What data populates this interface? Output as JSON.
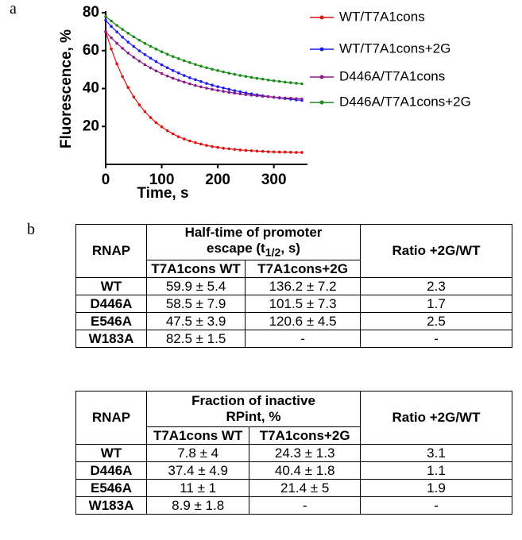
{
  "panels": {
    "a": "a",
    "b": "b"
  },
  "chart_data": {
    "type": "scatter",
    "xlabel": "Time, s",
    "ylabel": "Fluorescence, %",
    "xlim": [
      0,
      360
    ],
    "ylim": [
      0,
      80
    ],
    "xticks": [
      0,
      100,
      200,
      300
    ],
    "yticks": [
      20,
      40,
      60,
      80
    ],
    "x": [
      0,
      10,
      20,
      30,
      40,
      50,
      60,
      70,
      80,
      90,
      100,
      110,
      120,
      130,
      140,
      150,
      160,
      170,
      180,
      190,
      200,
      210,
      220,
      230,
      240,
      250,
      260,
      270,
      280,
      290,
      300,
      310,
      320,
      330,
      340,
      350
    ],
    "series": [
      {
        "name": "WT/T7A1cons",
        "color": "#e01010",
        "values": [
          70,
          60.9,
          53.0,
          46.3,
          40.6,
          35.6,
          31.4,
          27.8,
          24.7,
          22.0,
          19.8,
          17.8,
          16.1,
          14.6,
          13.4,
          12.4,
          11.5,
          10.7,
          10.0,
          9.4,
          9.0,
          8.5,
          8.2,
          7.9,
          7.6,
          7.4,
          7.2,
          7.0,
          6.9,
          6.7,
          6.6,
          6.5,
          6.5,
          6.4,
          6.3,
          6.3
        ]
      },
      {
        "name": "WT/T7A1cons+2G",
        "color": "#1a1aee",
        "values": [
          76,
          72.8,
          69.9,
          67.1,
          64.5,
          62.2,
          59.9,
          57.9,
          56.0,
          54.2,
          52.5,
          51.0,
          49.5,
          48.2,
          46.9,
          45.7,
          44.7,
          43.7,
          42.7,
          41.8,
          41.0,
          40.3,
          39.6,
          38.9,
          38.3,
          37.7,
          37.2,
          36.7,
          36.2,
          35.8,
          35.4,
          35.0,
          34.7,
          34.4,
          34.0,
          33.8
        ]
      },
      {
        "name": "D446A/T7A1cons",
        "color": "#8b1a8b",
        "values": [
          70,
          66.8,
          63.9,
          61.2,
          58.7,
          56.5,
          54.5,
          52.6,
          50.9,
          49.3,
          47.9,
          46.6,
          45.4,
          44.4,
          43.4,
          42.5,
          41.6,
          40.9,
          40.2,
          39.6,
          39.0,
          38.5,
          38.0,
          37.6,
          37.2,
          36.8,
          36.5,
          36.2,
          35.9,
          35.7,
          35.4,
          35.2,
          35.0,
          34.9,
          34.7,
          34.5
        ]
      },
      {
        "name": "D446A/T7A1cons+2G",
        "color": "#1a8c1a",
        "values": [
          78,
          75.6,
          73.3,
          71.2,
          69.2,
          67.3,
          65.5,
          63.8,
          62.3,
          60.8,
          59.4,
          58.1,
          56.9,
          55.8,
          54.7,
          53.7,
          52.7,
          51.8,
          51.0,
          50.2,
          49.5,
          48.8,
          48.1,
          47.5,
          46.9,
          46.4,
          45.9,
          45.4,
          45.0,
          44.5,
          44.1,
          43.8,
          43.4,
          43.1,
          42.8,
          42.5
        ]
      }
    ]
  },
  "tables": [
    {
      "header": {
        "rnap": "RNAP",
        "title_parts": [
          "Half-time of promoter escape (t",
          "1/2",
          ", s)"
        ],
        "ratio": "Ratio +2G/WT",
        "sub": [
          "T7A1cons WT",
          "T7A1cons+2G"
        ]
      },
      "rows": [
        [
          "WT",
          "59.9 ± 5.4",
          "136.2 ± 7.2",
          "2.3"
        ],
        [
          "D446A",
          "58.5 ± 7.9",
          "101.5 ± 7.3",
          "1.7"
        ],
        [
          "E546A",
          "47.5 ± 3.9",
          "120.6 ± 4.5",
          "2.5"
        ],
        [
          "W183A",
          "82.5 ± 1.5",
          "-",
          "-"
        ]
      ]
    },
    {
      "header": {
        "rnap": "RNAP",
        "title_parts": [
          "Fraction of inactive RPint, %"
        ],
        "ratio": "Ratio +2G/WT",
        "sub": [
          "T7A1cons WT",
          "T7A1cons+2G"
        ]
      },
      "rows": [
        [
          "WT",
          "7.8 ± 4",
          "24.3 ± 1.3",
          "3.1"
        ],
        [
          "D446A",
          "37.4  ± 4.9",
          "40.4 ± 1.8",
          "1.1"
        ],
        [
          "E546A",
          "11 ± 1",
          "21.4 ± 5",
          "1.9"
        ],
        [
          "W183A",
          "8.9 ± 1.8",
          "-",
          "-"
        ]
      ]
    }
  ]
}
